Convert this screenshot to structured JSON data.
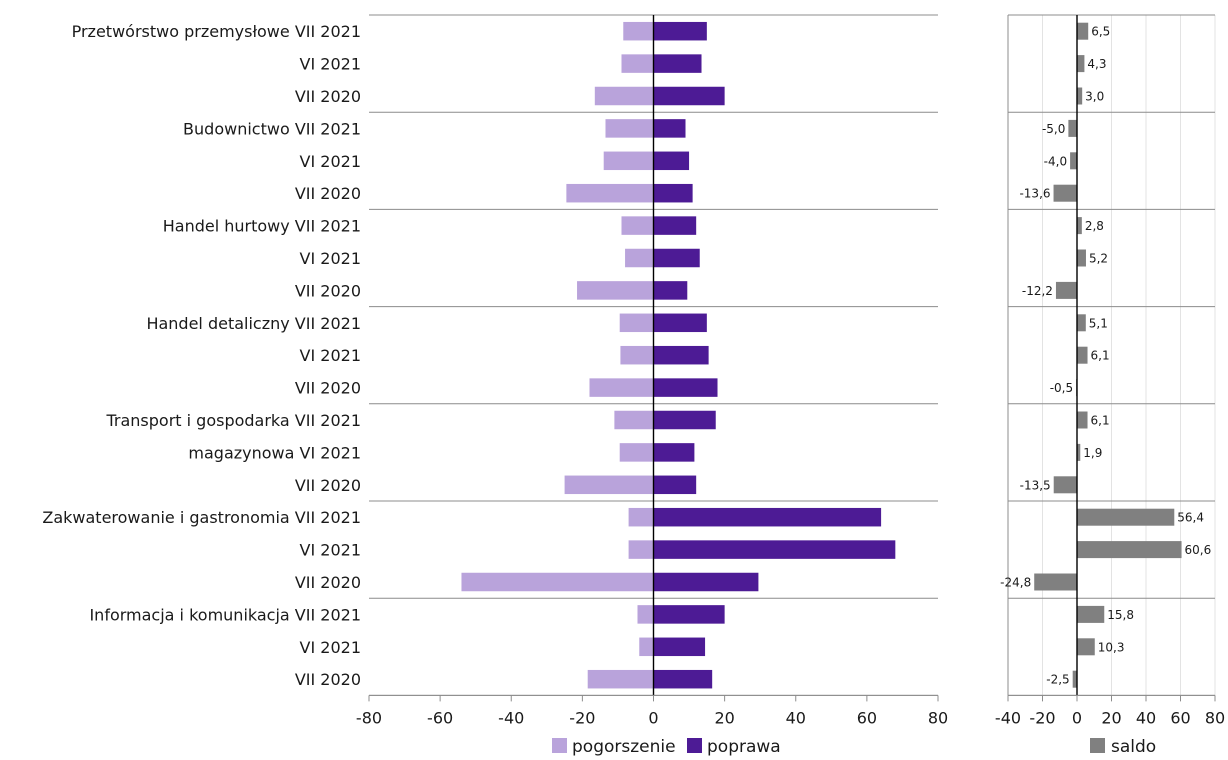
{
  "chart_data": [
    {
      "type": "bar",
      "orientation": "horizontal",
      "categories": [
        "Przetwórstwo przemysłowe VII 2021",
        "VI 2021",
        "VII 2020",
        "Budownictwo VII 2021",
        "VI 2021",
        "VII 2020",
        "Handel hurtowy VII 2021",
        "VI 2021",
        "VII 2020",
        "Handel detaliczny VII 2021",
        "VI 2021",
        "VII 2020",
        "Transport i gospodarka VII 2021",
        "magazynowa  VI 2021",
        "VII 2020",
        "Zakwaterowanie i gastronomia VII 2021",
        "VI 2021",
        "VII 2020",
        "Informacja i komunikacja VII 2021",
        "VI 2021",
        "VII 2020"
      ],
      "series": [
        {
          "name": "pogorszenie",
          "color": "#b9a3db",
          "values": [
            -8.5,
            -9.0,
            -16.5,
            -13.5,
            -14.0,
            -24.5,
            -9.0,
            -8.0,
            -21.5,
            -9.5,
            -9.3,
            -18.0,
            -11.0,
            -9.5,
            -25.0,
            -7.0,
            -7.0,
            -54.0,
            -4.5,
            -4.0,
            -18.5
          ]
        },
        {
          "name": "poprawa",
          "color": "#4d1b95",
          "values": [
            15.0,
            13.5,
            20.0,
            9.0,
            10.0,
            11.0,
            12.0,
            13.0,
            9.5,
            15.0,
            15.5,
            18.0,
            17.5,
            11.5,
            12.0,
            64.0,
            68.0,
            29.5,
            20.0,
            14.5,
            16.5
          ]
        }
      ],
      "xlim": [
        -80,
        80
      ],
      "xticks": [
        "-80",
        "-60",
        "-40",
        "-20",
        "0",
        "20",
        "40",
        "60",
        "80"
      ],
      "group_size": 3,
      "grid": false,
      "legend_position": "bottom"
    },
    {
      "type": "bar",
      "orientation": "horizontal",
      "series": [
        {
          "name": "saldo",
          "color": "#808080",
          "values": [
            6.5,
            4.3,
            3.0,
            -5.0,
            -4.0,
            -13.6,
            2.8,
            5.2,
            -12.2,
            5.1,
            6.1,
            -0.5,
            6.1,
            1.9,
            -13.5,
            56.4,
            60.6,
            -24.8,
            15.8,
            10.3,
            -2.5
          ],
          "labels": [
            "6,5",
            "4,3",
            "3,0",
            "-5,0",
            "-4,0",
            "-13,6",
            "2,8",
            "5,2",
            "-12,2",
            "5,1",
            "6,1",
            "-0,5",
            "6,1",
            "1,9",
            "-13,5",
            "56,4",
            "60,6",
            "-24,8",
            "15,8",
            "10,3",
            "-2,5"
          ]
        }
      ],
      "xlim": [
        -40,
        80
      ],
      "xticks": [
        "-40",
        "-20",
        "0",
        "20",
        "40",
        "60",
        "80"
      ],
      "grid": true,
      "legend_position": "bottom"
    }
  ]
}
